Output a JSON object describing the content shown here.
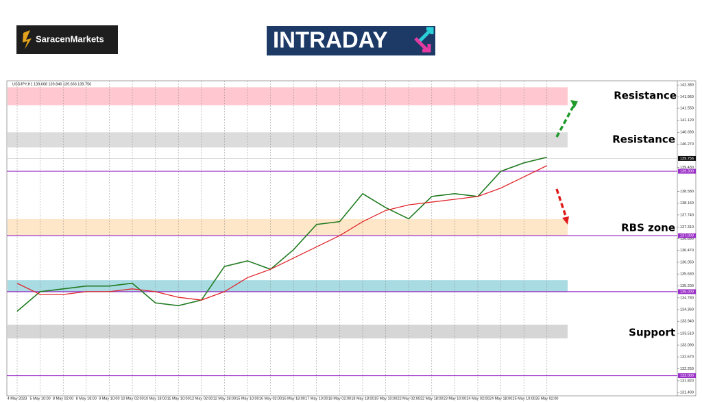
{
  "header": {
    "brand": "SaracenMarkets",
    "badge": "INTRADAY"
  },
  "chart_data": {
    "type": "line",
    "symbol_info": "USDJPY,H1  139.668 139.846 139.666 139.756",
    "categories": [
      "4 May 2023",
      "5 May 10:00",
      "8 May 02:00",
      "8 May 18:00",
      "9 May 10:00",
      "10 May 02:00",
      "10 May 18:00",
      "11 May 10:00",
      "12 May 02:00",
      "12 May 18:00",
      "15 May 10:00",
      "16 May 02:00",
      "16 May 18:00",
      "17 May 10:00",
      "18 May 02:00",
      "18 May 18:00",
      "19 May 10:00",
      "22 May 02:00",
      "22 May 18:00",
      "23 May 10:00",
      "24 May 02:00",
      "24 May 18:00",
      "25 May 10:00",
      "26 May 02:00"
    ],
    "series": [
      {
        "color": "#1f7a1f",
        "values": [
          134.3,
          135.0,
          135.1,
          135.2,
          135.2,
          135.3,
          134.6,
          134.5,
          134.7,
          135.9,
          136.1,
          135.8,
          136.5,
          137.4,
          137.5,
          138.5,
          138.0,
          137.6,
          138.4,
          138.5,
          138.4,
          139.3,
          139.6,
          139.8
        ]
      },
      {
        "color": "#e0262b",
        "values": [
          135.3,
          134.9,
          134.9,
          135.0,
          135.0,
          135.1,
          135.0,
          134.8,
          134.7,
          135.0,
          135.5,
          135.8,
          136.2,
          136.6,
          137.0,
          137.5,
          137.9,
          138.1,
          138.2,
          138.3,
          138.4,
          138.7,
          139.1,
          139.5
        ]
      }
    ],
    "ylim": [
      131.28,
      142.53
    ],
    "yticks": [
      {
        "value": 142.38,
        "label": "142.380"
      },
      {
        "value": 141.96,
        "label": "141.960"
      },
      {
        "value": 141.55,
        "label": "141.550"
      },
      {
        "value": 141.12,
        "label": "141.120"
      },
      {
        "value": 140.69,
        "label": "140.690"
      },
      {
        "value": 140.27,
        "label": "140.270"
      },
      {
        "value": 139.43,
        "label": "139.430"
      },
      {
        "value": 138.58,
        "label": "138.580"
      },
      {
        "value": 138.16,
        "label": "138.160"
      },
      {
        "value": 137.74,
        "label": "137.740"
      },
      {
        "value": 137.31,
        "label": "137.310"
      },
      {
        "value": 136.89,
        "label": "136.890"
      },
      {
        "value": 136.47,
        "label": "136.470"
      },
      {
        "value": 136.05,
        "label": "136.050"
      },
      {
        "value": 135.63,
        "label": "135.630"
      },
      {
        "value": 135.2,
        "label": "135.200"
      },
      {
        "value": 134.78,
        "label": "134.780"
      },
      {
        "value": 134.36,
        "label": "134.360"
      },
      {
        "value": 133.94,
        "label": "133.940"
      },
      {
        "value": 133.51,
        "label": "133.510"
      },
      {
        "value": 133.09,
        "label": "133.090"
      },
      {
        "value": 132.67,
        "label": "132.670"
      },
      {
        "value": 132.25,
        "label": "132.250"
      },
      {
        "value": 131.82,
        "label": "131.820"
      },
      {
        "value": 131.4,
        "label": "131.400"
      }
    ],
    "grid": true,
    "current_price": {
      "value": 139.756,
      "label": "139.756"
    },
    "levels": [
      {
        "value": 139.3,
        "label": "139.300"
      },
      {
        "value": 137.0,
        "label": "137.000"
      },
      {
        "value": 135.0,
        "label": "135.000"
      },
      {
        "value": 132.0,
        "label": "132.000"
      }
    ],
    "level_color": "#9b30c8",
    "zones": [
      {
        "low": 141.66,
        "high": 142.3,
        "color": "#ffc7cf"
      },
      {
        "low": 140.15,
        "high": 140.69,
        "color": "#dcdcdc"
      },
      {
        "low": 136.99,
        "high": 137.59,
        "color": "#fde7c8"
      },
      {
        "low": 134.98,
        "high": 135.41,
        "color": "#a9dbe3"
      },
      {
        "low": 133.33,
        "high": 133.82,
        "color": "#d6d6d6"
      }
    ],
    "annotations": [
      {
        "text": "Resistance",
        "color": "#1d1dd6"
      },
      {
        "text": "Resistance",
        "color": "#9a1414"
      },
      {
        "text": "RBS zone",
        "color": "#9a9a1a"
      },
      {
        "text": "Support",
        "color": "#f07a2a"
      }
    ]
  }
}
